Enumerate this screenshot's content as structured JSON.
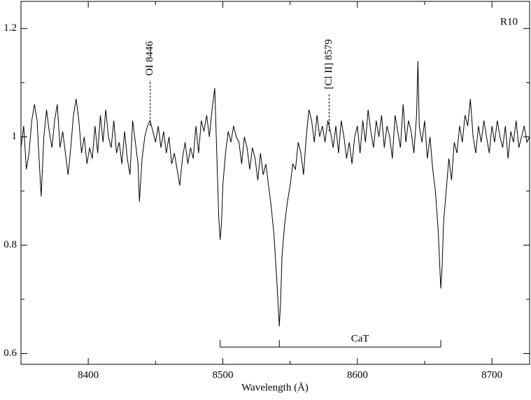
{
  "chart_data": {
    "type": "line",
    "x_label": "Wavelength  (Å)",
    "corner_label": "R10",
    "xlim": [
      8350,
      8728
    ],
    "ylim": [
      0.58,
      1.25
    ],
    "xticks": [
      8400,
      8500,
      8600,
      8700
    ],
    "xminorticks": [
      8350,
      8450,
      8550,
      8650
    ],
    "yticks": [
      0.6,
      0.8,
      1,
      1.2
    ],
    "yminorticks": [
      0.7,
      0.9,
      1.1
    ],
    "series": [
      {
        "name": "R10",
        "color": "#000000",
        "x": [
          8350,
          8352,
          8354,
          8356,
          8358,
          8360,
          8362,
          8363,
          8365,
          8367,
          8369,
          8371,
          8373,
          8375,
          8377,
          8379,
          8381,
          8383,
          8385,
          8387,
          8389,
          8391,
          8393,
          8395,
          8397,
          8399,
          8401,
          8403,
          8405,
          8407,
          8409,
          8411,
          8413,
          8415,
          8417,
          8419,
          8421,
          8423,
          8425,
          8427,
          8429,
          8431,
          8433,
          8435,
          8437,
          8438,
          8440,
          8442,
          8444,
          8446,
          8448,
          8450,
          8452,
          8454,
          8456,
          8458,
          8460,
          8462,
          8464,
          8466,
          8468,
          8470,
          8472,
          8474,
          8476,
          8478,
          8480,
          8482,
          8484,
          8486,
          8488,
          8490,
          8492,
          8494,
          8495,
          8496,
          8497,
          8498,
          8499,
          8500,
          8502,
          8504,
          8506,
          8508,
          8510,
          8512,
          8514,
          8516,
          8518,
          8520,
          8522,
          8524,
          8526,
          8528,
          8530,
          8532,
          8534,
          8536,
          8538,
          8540,
          8542,
          8543,
          8544,
          8546,
          8548,
          8550,
          8552,
          8554,
          8556,
          8558,
          8560,
          8562,
          8564,
          8566,
          8568,
          8570,
          8572,
          8574,
          8576,
          8578,
          8580,
          8582,
          8584,
          8586,
          8588,
          8590,
          8592,
          8594,
          8596,
          8598,
          8600,
          8602,
          8604,
          8606,
          8608,
          8610,
          8612,
          8614,
          8616,
          8618,
          8620,
          8622,
          8624,
          8626,
          8628,
          8630,
          8632,
          8634,
          8636,
          8638,
          8640,
          8642,
          8644,
          8645,
          8646,
          8648,
          8650,
          8652,
          8654,
          8656,
          8658,
          8660,
          8662,
          8663,
          8664,
          8666,
          8668,
          8670,
          8672,
          8674,
          8676,
          8678,
          8680,
          8682,
          8684,
          8686,
          8688,
          8690,
          8692,
          8694,
          8696,
          8698,
          8700,
          8702,
          8704,
          8706,
          8708,
          8710,
          8712,
          8714,
          8716,
          8718,
          8720,
          8722,
          8724,
          8726,
          8728
        ],
        "values": [
          0.98,
          1.02,
          0.94,
          0.97,
          1.03,
          1.06,
          1.03,
          0.98,
          0.89,
          1.0,
          1.05,
          1.01,
          0.98,
          1.03,
          1.06,
          0.98,
          1.01,
          0.97,
          0.93,
          0.98,
          1.04,
          1.07,
          1.03,
          0.97,
          1.0,
          0.95,
          0.98,
          0.96,
          1.02,
          0.97,
          1.04,
          0.99,
          1.05,
          1.0,
          0.98,
          1.03,
          0.97,
          0.99,
          0.95,
          1.01,
          0.96,
          0.93,
          1.03,
          0.99,
          0.95,
          0.88,
          0.96,
          1.0,
          1.02,
          1.03,
          1.01,
          0.99,
          1.02,
          0.98,
          1.01,
          0.97,
          1.0,
          0.95,
          0.97,
          0.94,
          0.91,
          0.96,
          0.99,
          0.95,
          0.98,
          0.96,
          1.02,
          0.97,
          1.03,
          1.01,
          1.04,
          1.0,
          1.05,
          1.09,
          1.01,
          0.93,
          0.85,
          0.81,
          0.84,
          0.91,
          0.97,
          1.01,
          0.99,
          1.02,
          1.0,
          0.99,
          0.95,
          1.0,
          0.98,
          0.94,
          0.98,
          0.96,
          0.92,
          0.97,
          0.93,
          0.95,
          0.91,
          0.87,
          0.82,
          0.74,
          0.65,
          0.7,
          0.78,
          0.84,
          0.88,
          0.91,
          0.95,
          0.94,
          0.99,
          0.97,
          0.93,
          1.0,
          1.05,
          1.03,
          0.99,
          1.04,
          1.0,
          1.02,
          0.99,
          1.03,
          1.01,
          0.98,
          1.02,
          0.97,
          1.03,
          1.0,
          0.96,
          0.99,
          0.95,
          1.0,
          1.02,
          0.97,
          1.03,
          0.99,
          1.05,
          1.01,
          0.98,
          1.03,
          1.0,
          1.04,
          0.98,
          1.02,
          1.0,
          0.96,
          1.04,
          1.01,
          0.98,
          1.06,
          0.99,
          1.03,
          1.01,
          0.97,
          1.04,
          1.14,
          1.02,
          0.99,
          1.03,
          0.96,
          1.0,
          0.94,
          0.9,
          0.83,
          0.72,
          0.76,
          0.84,
          0.9,
          0.96,
          0.92,
          0.99,
          0.97,
          1.02,
          0.99,
          1.04,
          1.02,
          1.07,
          1.0,
          0.97,
          1.02,
          0.99,
          1.03,
          1.0,
          0.97,
          1.02,
          0.99,
          1.03,
          1.0,
          0.98,
          1.02,
          0.96,
          1.01,
          0.99,
          1.03,
          0.98,
          1.0,
          1.02,
          0.99,
          1.0
        ]
      }
    ],
    "annotations": [
      {
        "text": "OI 8446",
        "x": 8446,
        "y": [
          1.02,
          1.105
        ]
      },
      {
        "text": "[Cl II] 8579",
        "x": 8579,
        "y": [
          1.01,
          1.08
        ]
      }
    ],
    "bracket": {
      "label": "CaT",
      "x": [
        8498,
        8542,
        8662
      ],
      "y": 0.612
    }
  }
}
